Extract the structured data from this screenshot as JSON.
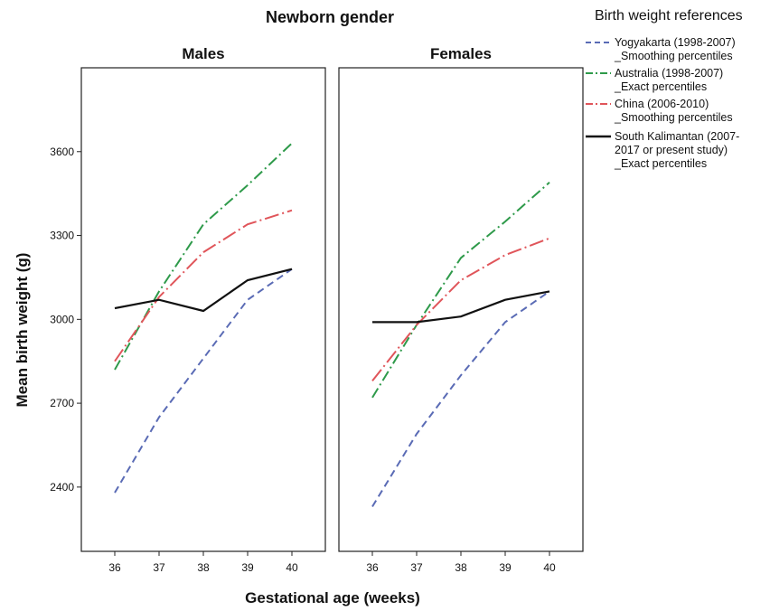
{
  "chart_data": {
    "type": "line",
    "title": "Newborn gender",
    "xlabel": "Gestational age (weeks)",
    "ylabel": "Mean birth weight (g)",
    "x": [
      36,
      37,
      38,
      39,
      40
    ],
    "ylim": [
      2170,
      3900
    ],
    "yticks": [
      2400,
      2700,
      3000,
      3300,
      3600
    ],
    "grid": false,
    "legend": {
      "title": "Birth weight references",
      "placement": "right",
      "entries": [
        {
          "lines": [
            "Yogyakarta (1998-2007)",
            "_Smoothing percentiles"
          ],
          "color": "#5a6bb5",
          "dash": "dash"
        },
        {
          "lines": [
            "Australia (1998-2007)",
            "_Exact percentiles"
          ],
          "color": "#2e9a4a",
          "dash": "dashdot"
        },
        {
          "lines": [
            "China (2006-2010)",
            "_Smoothing percentiles"
          ],
          "color": "#e0555a",
          "dash": "longdashdot"
        },
        {
          "lines": [
            "South Kalimantan (2007-",
            "2017 or present study)",
            "_Exact percentiles"
          ],
          "color": "#111111",
          "dash": "solid"
        }
      ]
    },
    "panels": [
      {
        "title": "Males",
        "series": [
          {
            "values": [
              2380,
              2650,
              2860,
              3070,
              3180
            ],
            "color": "#5a6bb5",
            "dash": "dash"
          },
          {
            "values": [
              2820,
              3100,
              3340,
              3480,
              3630
            ],
            "color": "#2e9a4a",
            "dash": "dashdot"
          },
          {
            "values": [
              2850,
              3080,
              3240,
              3340,
              3390
            ],
            "color": "#e0555a",
            "dash": "longdashdot"
          },
          {
            "values": [
              3040,
              3070,
              3030,
              3140,
              3180
            ],
            "color": "#111111",
            "dash": "solid"
          }
        ]
      },
      {
        "title": "Females",
        "series": [
          {
            "values": [
              2330,
              2590,
              2800,
              2990,
              3100
            ],
            "color": "#5a6bb5",
            "dash": "dash"
          },
          {
            "values": [
              2720,
              2980,
              3220,
              3350,
              3490
            ],
            "color": "#2e9a4a",
            "dash": "dashdot"
          },
          {
            "values": [
              2780,
              2980,
              3140,
              3230,
              3290
            ],
            "color": "#e0555a",
            "dash": "longdashdot"
          },
          {
            "values": [
              2990,
              2990,
              3010,
              3070,
              3100
            ],
            "color": "#111111",
            "dash": "solid"
          }
        ]
      }
    ]
  }
}
